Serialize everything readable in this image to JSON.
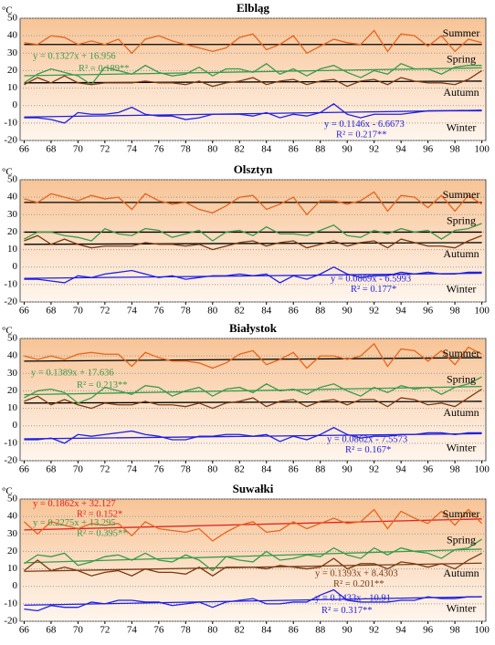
{
  "chart_data": [
    {
      "type": "line",
      "title": "Elbląg",
      "ylabel": "°C",
      "x": [
        66,
        67,
        68,
        69,
        70,
        71,
        72,
        73,
        74,
        75,
        76,
        77,
        78,
        79,
        80,
        81,
        82,
        83,
        84,
        85,
        86,
        87,
        88,
        89,
        90,
        91,
        92,
        93,
        94,
        95,
        96,
        97,
        98,
        99,
        100
      ],
      "xlim": [
        65.7,
        100.3
      ],
      "xticks": [
        66,
        68,
        70,
        72,
        74,
        76,
        78,
        80,
        82,
        84,
        86,
        88,
        90,
        92,
        94,
        96,
        98,
        100
      ],
      "ylim": [
        -20,
        50
      ],
      "yticks": [
        -20,
        -10,
        0,
        10,
        20,
        30,
        40,
        50
      ],
      "grid": true,
      "series": [
        {
          "name": "Summer",
          "color": "#e8641e",
          "values": [
            36,
            35,
            40,
            39,
            35,
            37,
            35,
            38,
            30,
            38,
            40,
            37,
            35,
            33,
            31,
            33,
            39,
            41,
            32,
            35,
            40,
            30,
            34,
            38,
            36,
            35,
            43,
            31,
            41,
            40,
            34,
            40,
            31,
            38,
            36
          ]
        },
        {
          "name": "Spring",
          "color": "#3a9a4a",
          "values": [
            13,
            18,
            21,
            19,
            17,
            12,
            22,
            20,
            18,
            23,
            19,
            17,
            18,
            22,
            17,
            21,
            21,
            19,
            24,
            18,
            21,
            17,
            21,
            23,
            19,
            16,
            20,
            18,
            24,
            21,
            21,
            18,
            22,
            23,
            23
          ]
        },
        {
          "name": "Autumn",
          "color": "#7a3a12",
          "values": [
            12,
            16,
            13,
            17,
            13,
            12,
            13,
            13,
            13,
            14,
            13,
            13,
            12,
            14,
            11,
            13,
            14,
            16,
            12,
            14,
            15,
            12,
            14,
            15,
            11,
            14,
            15,
            12,
            16,
            14,
            13,
            13,
            12,
            15,
            20
          ]
        },
        {
          "name": "Winter",
          "color": "#2020e0",
          "values": [
            -7,
            -7,
            -8,
            -10,
            -4,
            -5,
            -5,
            -4,
            -1,
            -5,
            -6,
            -6,
            -8,
            -7,
            -5,
            -5,
            -5,
            -6,
            -4,
            -7,
            -5,
            -6,
            -4,
            1,
            -5,
            -7,
            -5,
            -5,
            -5,
            -4,
            -3,
            -3,
            -3,
            -3,
            -3
          ]
        }
      ],
      "lines": [
        {
          "color": "#000000",
          "x": [
            66,
            100
          ],
          "values": [
            35,
            35
          ]
        },
        {
          "color": "#3a9a4a",
          "x": [
            66,
            100
          ],
          "values": [
            17.1,
            21.6
          ]
        },
        {
          "color": "#000000",
          "x": [
            66,
            100
          ],
          "values": [
            13,
            14
          ]
        },
        {
          "color": "#2020e0",
          "x": [
            66,
            100
          ],
          "values": [
            -6.55,
            -2.66
          ]
        }
      ],
      "annotations": [
        {
          "text": "y = 0.1327x + 16.956",
          "color": "#3a9a4a"
        },
        {
          "text": "R² = 0.189**",
          "color": "#3a9a4a"
        },
        {
          "text": "y = 0.1146x - 6.6673",
          "color": "#2020e0"
        },
        {
          "text": "R² = 0.217**",
          "color": "#2020e0"
        }
      ]
    },
    {
      "type": "line",
      "title": "Olsztyn",
      "ylabel": "°C",
      "x": [
        66,
        67,
        68,
        69,
        70,
        71,
        72,
        73,
        74,
        75,
        76,
        77,
        78,
        79,
        80,
        81,
        82,
        83,
        84,
        85,
        86,
        87,
        88,
        89,
        90,
        91,
        92,
        93,
        94,
        95,
        96,
        97,
        98,
        99,
        100
      ],
      "xlim": [
        65.7,
        100.3
      ],
      "xticks": [
        66,
        68,
        70,
        72,
        74,
        76,
        78,
        80,
        82,
        84,
        86,
        88,
        90,
        92,
        94,
        96,
        98,
        100
      ],
      "ylim": [
        -20,
        50
      ],
      "yticks": [
        -20,
        -10,
        0,
        10,
        20,
        30,
        40,
        50
      ],
      "grid": true,
      "series": [
        {
          "name": "Summer",
          "color": "#e8641e",
          "values": [
            39,
            37,
            42,
            40,
            38,
            41,
            39,
            40,
            33,
            42,
            38,
            36,
            37,
            33,
            31,
            35,
            40,
            41,
            33,
            36,
            40,
            30,
            38,
            38,
            36,
            38,
            43,
            32,
            41,
            40,
            34,
            41,
            32,
            41,
            36
          ]
        },
        {
          "name": "Spring",
          "color": "#3a9a4a",
          "values": [
            16,
            20,
            20,
            18,
            17,
            15,
            22,
            19,
            18,
            22,
            21,
            17,
            19,
            21,
            15,
            20,
            21,
            18,
            23,
            19,
            19,
            18,
            21,
            24,
            18,
            17,
            21,
            19,
            22,
            20,
            21,
            16,
            21,
            22,
            25
          ]
        },
        {
          "name": "Autumn",
          "color": "#7a3a12",
          "values": [
            15,
            18,
            13,
            16,
            13,
            11,
            12,
            12,
            12,
            14,
            13,
            13,
            12,
            13,
            10,
            12,
            14,
            15,
            12,
            14,
            15,
            11,
            13,
            15,
            12,
            14,
            15,
            11,
            16,
            14,
            12,
            12,
            11,
            15,
            18
          ]
        },
        {
          "name": "Winter",
          "color": "#2020e0",
          "values": [
            -7,
            -7,
            -8,
            -9,
            -5,
            -6,
            -4,
            -3,
            -2,
            -4,
            -6,
            -5,
            -7,
            -6,
            -5,
            -5,
            -4,
            -5,
            -4,
            -9,
            -5,
            -7,
            -4,
            0,
            -4,
            -6,
            -5,
            -5,
            -3,
            -4,
            -3,
            -4,
            -4,
            -3,
            -3
          ]
        }
      ],
      "lines": [
        {
          "color": "#000000",
          "x": [
            66,
            100
          ],
          "values": [
            37,
            37
          ]
        },
        {
          "color": "#000000",
          "x": [
            66,
            100
          ],
          "values": [
            20,
            20
          ]
        },
        {
          "color": "#000000",
          "x": [
            66,
            100
          ],
          "values": [
            13,
            14
          ]
        },
        {
          "color": "#2020e0",
          "x": [
            66,
            100
          ],
          "values": [
            -6.5,
            -3.56
          ]
        }
      ],
      "annotations": [
        {
          "text": "y = 0.0869x - 6.5993",
          "color": "#2020e0"
        },
        {
          "text": "R² = 0.177*",
          "color": "#2020e0"
        }
      ]
    },
    {
      "type": "line",
      "title": "Białystok",
      "ylabel": "°C",
      "x": [
        66,
        67,
        68,
        69,
        70,
        71,
        72,
        73,
        74,
        75,
        76,
        77,
        78,
        79,
        80,
        81,
        82,
        83,
        84,
        85,
        86,
        87,
        88,
        89,
        90,
        91,
        92,
        93,
        94,
        95,
        96,
        97,
        98,
        99,
        100
      ],
      "xlim": [
        65.7,
        100.3
      ],
      "xticks": [
        66,
        68,
        70,
        72,
        74,
        76,
        78,
        80,
        82,
        84,
        86,
        88,
        90,
        92,
        94,
        96,
        98,
        100
      ],
      "ylim": [
        -20,
        50
      ],
      "yticks": [
        -20,
        -10,
        0,
        10,
        20,
        30,
        40,
        50
      ],
      "grid": true,
      "series": [
        {
          "name": "Summer",
          "color": "#e8641e",
          "values": [
            40,
            38,
            40,
            38,
            41,
            42,
            41,
            41,
            34,
            42,
            39,
            37,
            37,
            36,
            33,
            36,
            41,
            43,
            35,
            38,
            42,
            33,
            40,
            40,
            38,
            40,
            47,
            34,
            44,
            43,
            37,
            43,
            35,
            45,
            41
          ]
        },
        {
          "name": "Spring",
          "color": "#3a9a4a",
          "values": [
            16,
            20,
            21,
            19,
            13,
            16,
            22,
            20,
            18,
            23,
            22,
            17,
            20,
            22,
            17,
            21,
            22,
            19,
            24,
            20,
            21,
            18,
            22,
            24,
            20,
            17,
            22,
            19,
            23,
            21,
            22,
            18,
            22,
            24,
            28
          ]
        },
        {
          "name": "Autumn",
          "color": "#7a3a12",
          "values": [
            14,
            17,
            12,
            15,
            12,
            10,
            13,
            12,
            12,
            14,
            12,
            12,
            11,
            13,
            10,
            13,
            14,
            16,
            11,
            14,
            15,
            11,
            14,
            15,
            12,
            15,
            15,
            11,
            16,
            15,
            12,
            13,
            11,
            16,
            21
          ]
        },
        {
          "name": "Winter",
          "color": "#2020e0",
          "values": [
            -8,
            -8,
            -7,
            -10,
            -5,
            -6,
            -5,
            -4,
            -3,
            -5,
            -6,
            -8,
            -8,
            -6,
            -6,
            -5,
            -5,
            -6,
            -5,
            -9,
            -6,
            -8,
            -5,
            -1,
            -5,
            -7,
            -6,
            -6,
            -5,
            -5,
            -4,
            -4,
            -5,
            -4,
            -4
          ]
        }
      ],
      "lines": [
        {
          "color": "#000000",
          "x": [
            66,
            100
          ],
          "values": [
            37,
            39
          ]
        },
        {
          "color": "#3a9a4a",
          "x": [
            66,
            100
          ],
          "values": [
            17.8,
            22.5
          ]
        },
        {
          "color": "#000000",
          "x": [
            66,
            100
          ],
          "values": [
            13,
            14
          ]
        },
        {
          "color": "#2020e0",
          "x": [
            66,
            100
          ],
          "values": [
            -7.5,
            -4.5
          ]
        }
      ],
      "annotations": [
        {
          "text": "y = 0.1389x + 17.636",
          "color": "#3a9a4a"
        },
        {
          "text": "R² = 0.213**",
          "color": "#3a9a4a"
        },
        {
          "text": "y = 0.0862x - 7.5573",
          "color": "#2020e0"
        },
        {
          "text": "R² = 0.167*",
          "color": "#2020e0"
        }
      ]
    },
    {
      "type": "line",
      "title": "Suwałki",
      "ylabel": "°C",
      "x": [
        66,
        67,
        68,
        69,
        70,
        71,
        72,
        73,
        74,
        75,
        76,
        77,
        78,
        79,
        80,
        81,
        82,
        83,
        84,
        85,
        86,
        87,
        88,
        89,
        90,
        91,
        92,
        93,
        94,
        95,
        96,
        97,
        98,
        99,
        100
      ],
      "xlim": [
        65.7,
        100.3
      ],
      "xticks": [
        66,
        68,
        70,
        72,
        74,
        76,
        78,
        80,
        82,
        84,
        86,
        88,
        90,
        92,
        94,
        96,
        98,
        100
      ],
      "ylim": [
        -20,
        50
      ],
      "yticks": [
        -20,
        -10,
        0,
        10,
        20,
        30,
        40,
        50
      ],
      "grid": true,
      "series": [
        {
          "name": "Summer",
          "color": "#e8641e",
          "values": [
            37,
            30,
            37,
            35,
            33,
            36,
            35,
            36,
            29,
            37,
            33,
            32,
            31,
            33,
            26,
            31,
            35,
            37,
            31,
            32,
            37,
            33,
            36,
            39,
            36,
            37,
            44,
            33,
            43,
            39,
            36,
            43,
            35,
            44,
            36
          ]
        },
        {
          "name": "Spring",
          "color": "#3a9a4a",
          "values": [
            13,
            18,
            17,
            19,
            12,
            14,
            17,
            18,
            15,
            19,
            15,
            14,
            18,
            15,
            9,
            17,
            15,
            14,
            20,
            15,
            16,
            18,
            17,
            22,
            18,
            16,
            22,
            18,
            22,
            20,
            19,
            16,
            21,
            22,
            27
          ]
        },
        {
          "name": "Autumn",
          "color": "#7a3a12",
          "values": [
            9,
            15,
            9,
            11,
            9,
            6,
            8,
            9,
            6,
            10,
            8,
            8,
            7,
            11,
            6,
            11,
            11,
            11,
            10,
            12,
            11,
            10,
            11,
            16,
            10,
            13,
            13,
            10,
            14,
            13,
            11,
            13,
            10,
            15,
            19
          ]
        },
        {
          "name": "Winter",
          "color": "#2020e0",
          "values": [
            -13,
            -14,
            -11,
            -12,
            -12,
            -9,
            -10,
            -8,
            -8,
            -9,
            -9,
            -11,
            -10,
            -9,
            -12,
            -9,
            -8,
            -7,
            -10,
            -10,
            -9,
            -9,
            -5,
            -2,
            -8,
            -9,
            -9,
            -9,
            -8,
            -8,
            -6,
            -7,
            -7,
            -6,
            -6
          ]
        }
      ],
      "lines": [
        {
          "color": "#e02020",
          "x": [
            66,
            100
          ],
          "values": [
            32.3,
            38.6
          ]
        },
        {
          "color": "#3a9a4a",
          "x": [
            66,
            100
          ],
          "values": [
            13.5,
            21.3
          ]
        },
        {
          "color": "#7a3a12",
          "x": [
            66,
            100
          ],
          "values": [
            8.6,
            13.3
          ]
        },
        {
          "color": "#2020e0",
          "x": [
            66,
            100
          ],
          "values": [
            -10.8,
            -5.9
          ]
        }
      ],
      "annotations": [
        {
          "text": "y = 0.1862x + 32.127",
          "color": "#e02020"
        },
        {
          "text": "R² = 0.152*",
          "color": "#e02020"
        },
        {
          "text": "y = 0.2275x + 13.295",
          "color": "#3a9a4a"
        },
        {
          "text": "R² = 0.395**",
          "color": "#3a9a4a"
        },
        {
          "text": "y = 0.1393x + 8.4303",
          "color": "#7a3a12"
        },
        {
          "text": "R² = 0.201**",
          "color": "#7a3a12"
        },
        {
          "text": "y = 0.1433x - 10.91",
          "color": "#2020e0"
        },
        {
          "text": "R² = 0.317**",
          "color": "#2020e0"
        }
      ]
    }
  ]
}
